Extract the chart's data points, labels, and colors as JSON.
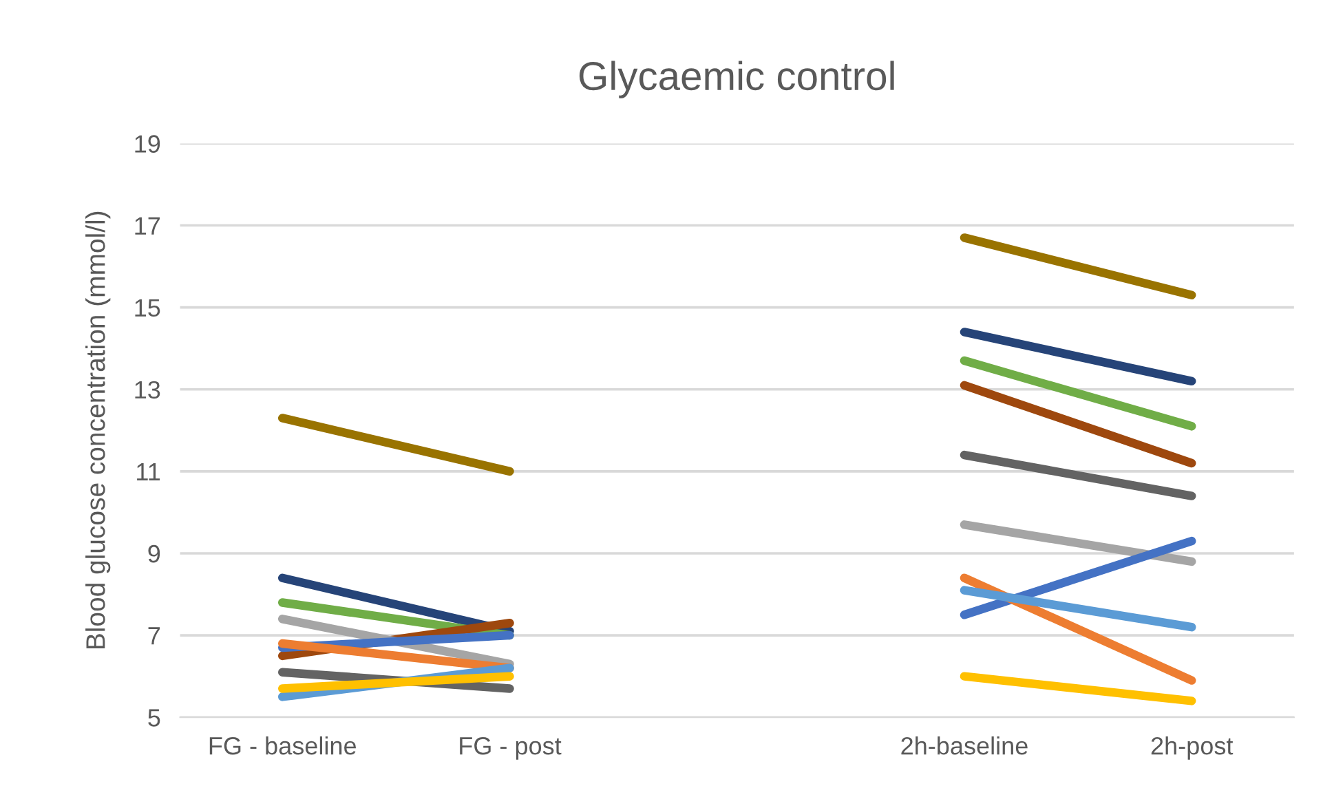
{
  "chart_data": {
    "type": "line",
    "title": "Glycaemic control",
    "ylabel": "Blood glucose concentration (mmol/l)",
    "categories": [
      "FG - baseline",
      "FG - post",
      null,
      "2h-baseline",
      "2h-post"
    ],
    "ylim": [
      5,
      19
    ],
    "yticks": [
      5,
      7,
      9,
      11,
      13,
      15,
      17,
      19
    ],
    "grid": "y",
    "legend": false,
    "marker": "none",
    "line_style": "solid",
    "series": [
      {
        "color": "#997300",
        "values": [
          12.3,
          11.0,
          null,
          16.7,
          15.3
        ]
      },
      {
        "color": "#264478",
        "values": [
          8.4,
          7.1,
          null,
          14.4,
          13.2
        ]
      },
      {
        "color": "#70ad47",
        "values": [
          7.8,
          7.0,
          null,
          13.7,
          12.1
        ]
      },
      {
        "color": "#9e480e",
        "values": [
          6.5,
          7.3,
          null,
          13.1,
          11.2
        ]
      },
      {
        "color": "#636363",
        "values": [
          6.1,
          5.7,
          null,
          11.4,
          10.4
        ]
      },
      {
        "color": "#a5a5a5",
        "values": [
          7.4,
          6.3,
          null,
          9.7,
          8.8
        ]
      },
      {
        "color": "#4472c4",
        "values": [
          6.7,
          7.0,
          null,
          7.5,
          9.3
        ]
      },
      {
        "color": "#ed7d31",
        "values": [
          6.8,
          6.2,
          null,
          8.4,
          5.9
        ]
      },
      {
        "color": "#5b9bd5",
        "values": [
          5.5,
          6.2,
          null,
          8.1,
          7.2
        ]
      },
      {
        "color": "#ffc000",
        "values": [
          5.7,
          6.0,
          null,
          6.0,
          5.4
        ]
      }
    ]
  }
}
